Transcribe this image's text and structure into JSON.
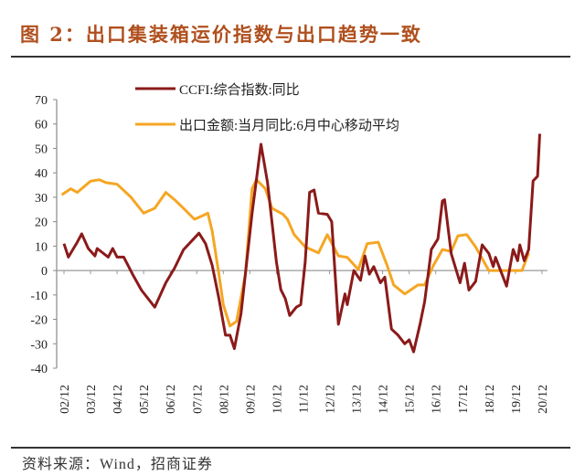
{
  "figure_title": "图 2：出口集装箱运价指数与出口趋势一致",
  "source": "资料来源：Wind，招商证券",
  "chart_data": {
    "type": "line",
    "title": "",
    "xlabel": "",
    "ylabel": "",
    "ylim": [
      -40,
      70
    ],
    "yticks": [
      70,
      60,
      50,
      40,
      30,
      20,
      10,
      0,
      -10,
      -20,
      -30,
      -40
    ],
    "xtick_labels": [
      "02/12",
      "03/12",
      "04/12",
      "05/12",
      "06/12",
      "07/12",
      "08/12",
      "09/12",
      "10/12",
      "11/12",
      "12/12",
      "13/12",
      "14/12",
      "15/12",
      "16/12",
      "17/12",
      "18/12",
      "19/12",
      "20/12"
    ],
    "grid": false,
    "legend_position": "top-center",
    "series": [
      {
        "name": "CCFI:综合指数:同比",
        "color": "#8b1a1a",
        "points": [
          [
            "2002-12",
            11
          ],
          [
            "2003-02",
            5.5
          ],
          [
            "2003-06",
            11.6
          ],
          [
            "2003-08",
            15
          ],
          [
            "2003-11",
            9
          ],
          [
            "2004-02",
            6
          ],
          [
            "2004-03",
            9
          ],
          [
            "2004-08",
            5.5
          ],
          [
            "2004-10",
            9
          ],
          [
            "2004-12",
            5.5
          ],
          [
            "2005-03",
            5.5
          ],
          [
            "2005-07",
            -1.5
          ],
          [
            "2005-11",
            -8
          ],
          [
            "2006-05",
            -15
          ],
          [
            "2006-10",
            -5
          ],
          [
            "2007-02",
            1
          ],
          [
            "2007-06",
            8.5
          ],
          [
            "2008-01",
            15.3
          ],
          [
            "2008-04",
            11
          ],
          [
            "2008-07",
            2
          ],
          [
            "2008-10",
            -11.5
          ],
          [
            "2009-01",
            -26.5
          ],
          [
            "2009-03",
            -26.5
          ],
          [
            "2009-05",
            -32
          ],
          [
            "2009-08",
            -17.6
          ],
          [
            "2010-01",
            23.5
          ],
          [
            "2010-05",
            51.7
          ],
          [
            "2010-08",
            36
          ],
          [
            "2010-12",
            3.5
          ],
          [
            "2011-02",
            -7.8
          ],
          [
            "2011-04",
            -11.5
          ],
          [
            "2011-06",
            -18.4
          ],
          [
            "2011-09",
            -15
          ],
          [
            "2011-11",
            -14
          ],
          [
            "2012-01",
            3.5
          ],
          [
            "2012-03",
            32
          ],
          [
            "2012-05",
            33
          ],
          [
            "2012-07",
            23.5
          ],
          [
            "2012-11",
            23
          ],
          [
            "2013-01",
            20
          ],
          [
            "2013-04",
            -22
          ],
          [
            "2013-07",
            -9.6
          ],
          [
            "2013-08",
            -14
          ],
          [
            "2013-11",
            0
          ],
          [
            "2014-02",
            -4
          ],
          [
            "2014-04",
            6
          ],
          [
            "2014-06",
            -1.5
          ],
          [
            "2014-08",
            1.6
          ],
          [
            "2014-11",
            -5
          ],
          [
            "2015-01",
            -2.7
          ],
          [
            "2015-04",
            -24
          ],
          [
            "2015-07",
            -26.5
          ],
          [
            "2015-10",
            -30
          ],
          [
            "2015-12",
            -28.4
          ],
          [
            "2016-02",
            -33.3
          ],
          [
            "2016-05",
            -21.5
          ],
          [
            "2016-07",
            -12.7
          ],
          [
            "2016-10",
            8.6
          ],
          [
            "2017-01",
            12.9
          ],
          [
            "2017-03",
            28.5
          ],
          [
            "2017-04",
            29
          ],
          [
            "2017-07",
            7
          ],
          [
            "2017-11",
            -5
          ],
          [
            "2018-01",
            3
          ],
          [
            "2018-03",
            -8
          ],
          [
            "2018-06",
            -4.5
          ],
          [
            "2018-09",
            10.5
          ],
          [
            "2018-12",
            7
          ],
          [
            "2019-02",
            1.6
          ],
          [
            "2019-03",
            5.4
          ],
          [
            "2019-08",
            -6.4
          ],
          [
            "2019-11",
            8.6
          ],
          [
            "2020-01",
            4
          ],
          [
            "2020-02",
            10.5
          ],
          [
            "2020-04",
            4
          ],
          [
            "2020-06",
            8.6
          ],
          [
            "2020-08",
            36.7
          ],
          [
            "2020-10",
            38.6
          ],
          [
            "2020-11",
            56
          ]
        ]
      },
      {
        "name": "出口金额:当月同比:6月中心移动平均",
        "color": "#f5a623",
        "points": [
          [
            "2002-11",
            31
          ],
          [
            "2003-03",
            33.5
          ],
          [
            "2003-06",
            32
          ],
          [
            "2003-12",
            36.6
          ],
          [
            "2004-04",
            37.2
          ],
          [
            "2004-07",
            36
          ],
          [
            "2004-12",
            35.3
          ],
          [
            "2005-06",
            30.3
          ],
          [
            "2005-12",
            23.5
          ],
          [
            "2006-05",
            25.5
          ],
          [
            "2006-10",
            32
          ],
          [
            "2007-02",
            29
          ],
          [
            "2007-06",
            25.5
          ],
          [
            "2007-11",
            21
          ],
          [
            "2008-02",
            22.2
          ],
          [
            "2008-05",
            23.5
          ],
          [
            "2008-07",
            16
          ],
          [
            "2008-10",
            -1.5
          ],
          [
            "2008-12",
            -14
          ],
          [
            "2009-03",
            -22.7
          ],
          [
            "2009-06",
            -20.8
          ],
          [
            "2009-10",
            -1.5
          ],
          [
            "2010-01",
            33.5
          ],
          [
            "2010-03",
            37.2
          ],
          [
            "2010-07",
            33.5
          ],
          [
            "2010-10",
            25.5
          ],
          [
            "2011-03",
            23
          ],
          [
            "2011-05",
            21
          ],
          [
            "2011-08",
            14.7
          ],
          [
            "2012-01",
            9.7
          ],
          [
            "2012-07",
            7.2
          ],
          [
            "2012-11",
            14.7
          ],
          [
            "2013-04",
            6
          ],
          [
            "2013-08",
            5.4
          ],
          [
            "2014-01",
            0.4
          ],
          [
            "2014-05",
            11
          ],
          [
            "2014-10",
            11.6
          ],
          [
            "2015-02",
            2.2
          ],
          [
            "2015-05",
            -5.9
          ],
          [
            "2015-10",
            -9.6
          ],
          [
            "2016-04",
            -5.9
          ],
          [
            "2016-07",
            -5.9
          ],
          [
            "2016-11",
            2.2
          ],
          [
            "2017-03",
            8.6
          ],
          [
            "2017-07",
            7.8
          ],
          [
            "2017-10",
            14.2
          ],
          [
            "2018-02",
            14.7
          ],
          [
            "2018-06",
            9.7
          ],
          [
            "2018-12",
            0
          ],
          [
            "2019-05",
            0
          ],
          [
            "2020-03",
            0
          ],
          [
            "2020-06",
            7.2
          ]
        ]
      }
    ]
  }
}
